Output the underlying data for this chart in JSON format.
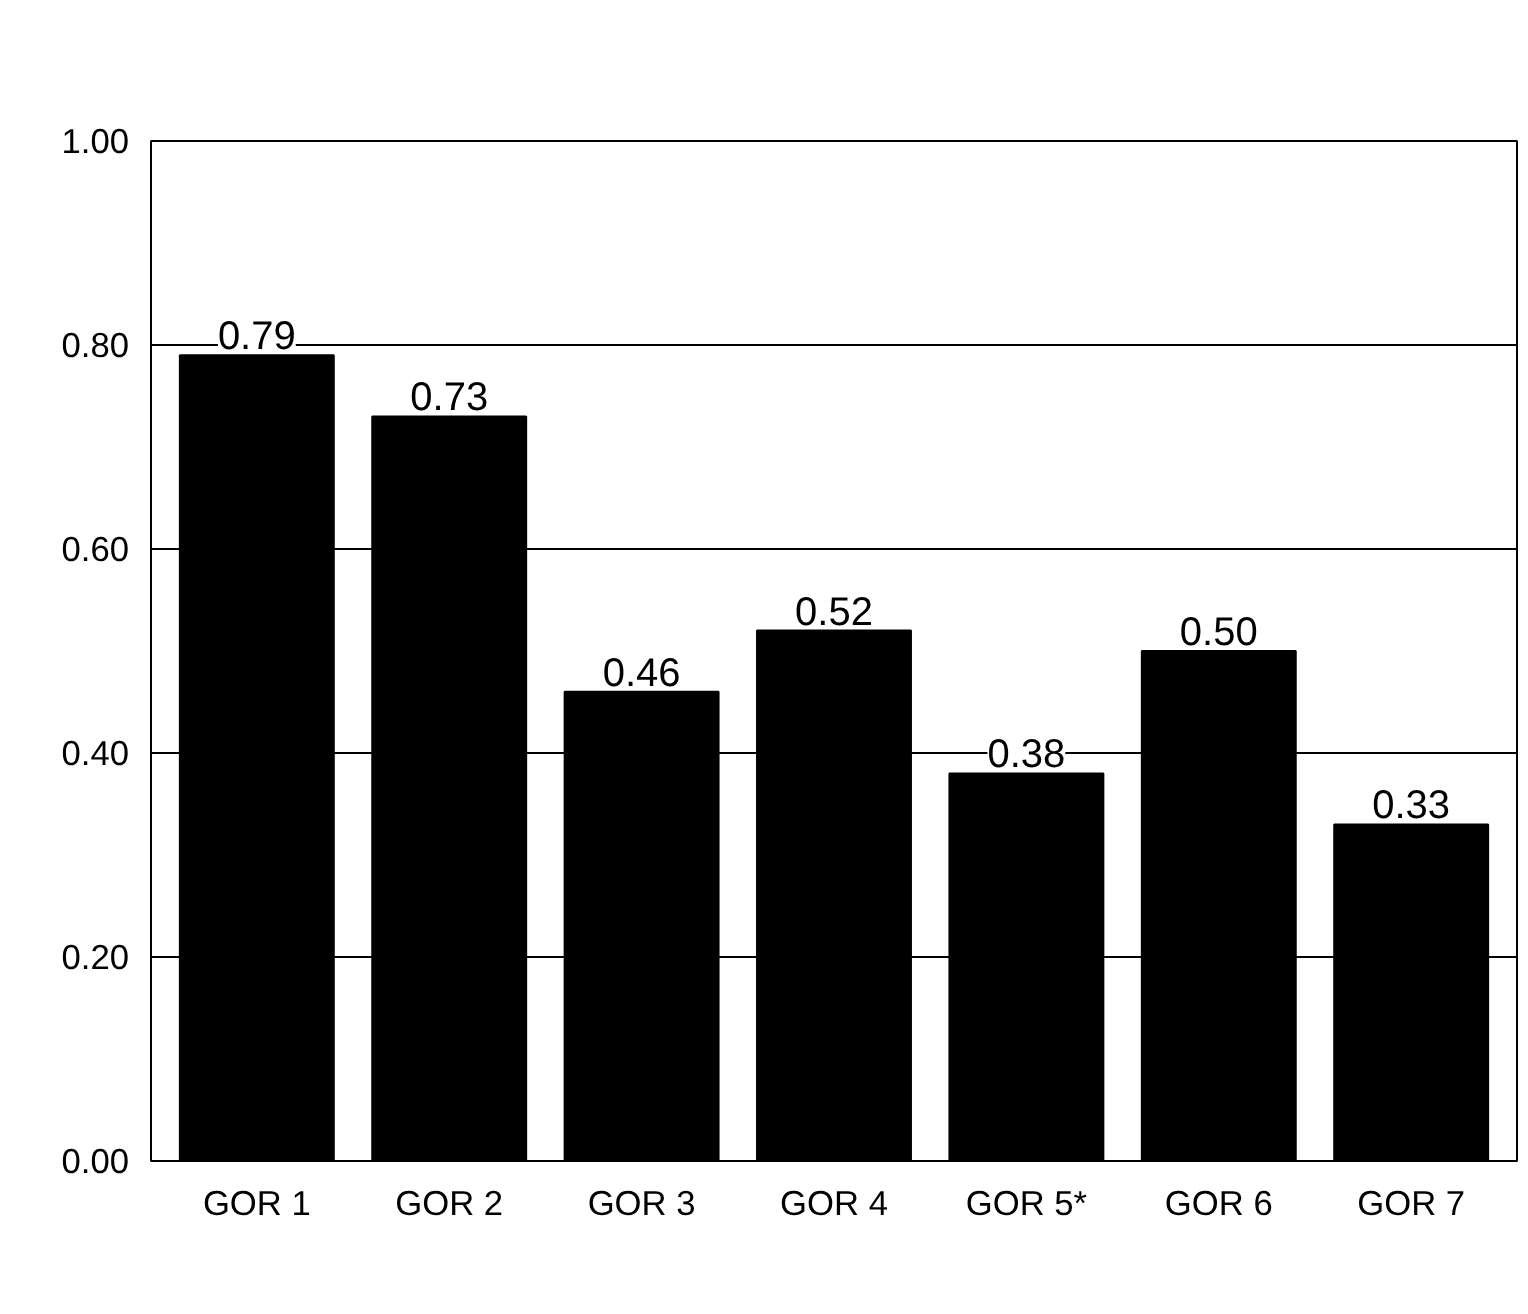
{
  "chart_data": {
    "type": "bar",
    "categories": [
      "GOR 1",
      "GOR 2",
      "GOR 3",
      "GOR 4",
      "GOR 5*",
      "GOR 6",
      "GOR 7"
    ],
    "values": [
      0.79,
      0.73,
      0.46,
      0.52,
      0.38,
      0.5,
      0.33
    ],
    "value_labels": [
      "0.79",
      "0.73",
      "0.46",
      "0.52",
      "0.38",
      "0.50",
      "0.33"
    ],
    "color": "#000000",
    "ylim": [
      0,
      1
    ],
    "yticks": [
      {
        "value": 0,
        "label": "0.00"
      },
      {
        "value": 0.2,
        "label": "0.20"
      },
      {
        "value": 0.4,
        "label": "0.40"
      },
      {
        "value": 0.6,
        "label": "0.60"
      },
      {
        "value": 0.8,
        "label": "0.80"
      },
      {
        "value": 1,
        "label": "1.00"
      }
    ],
    "grid": "y"
  }
}
